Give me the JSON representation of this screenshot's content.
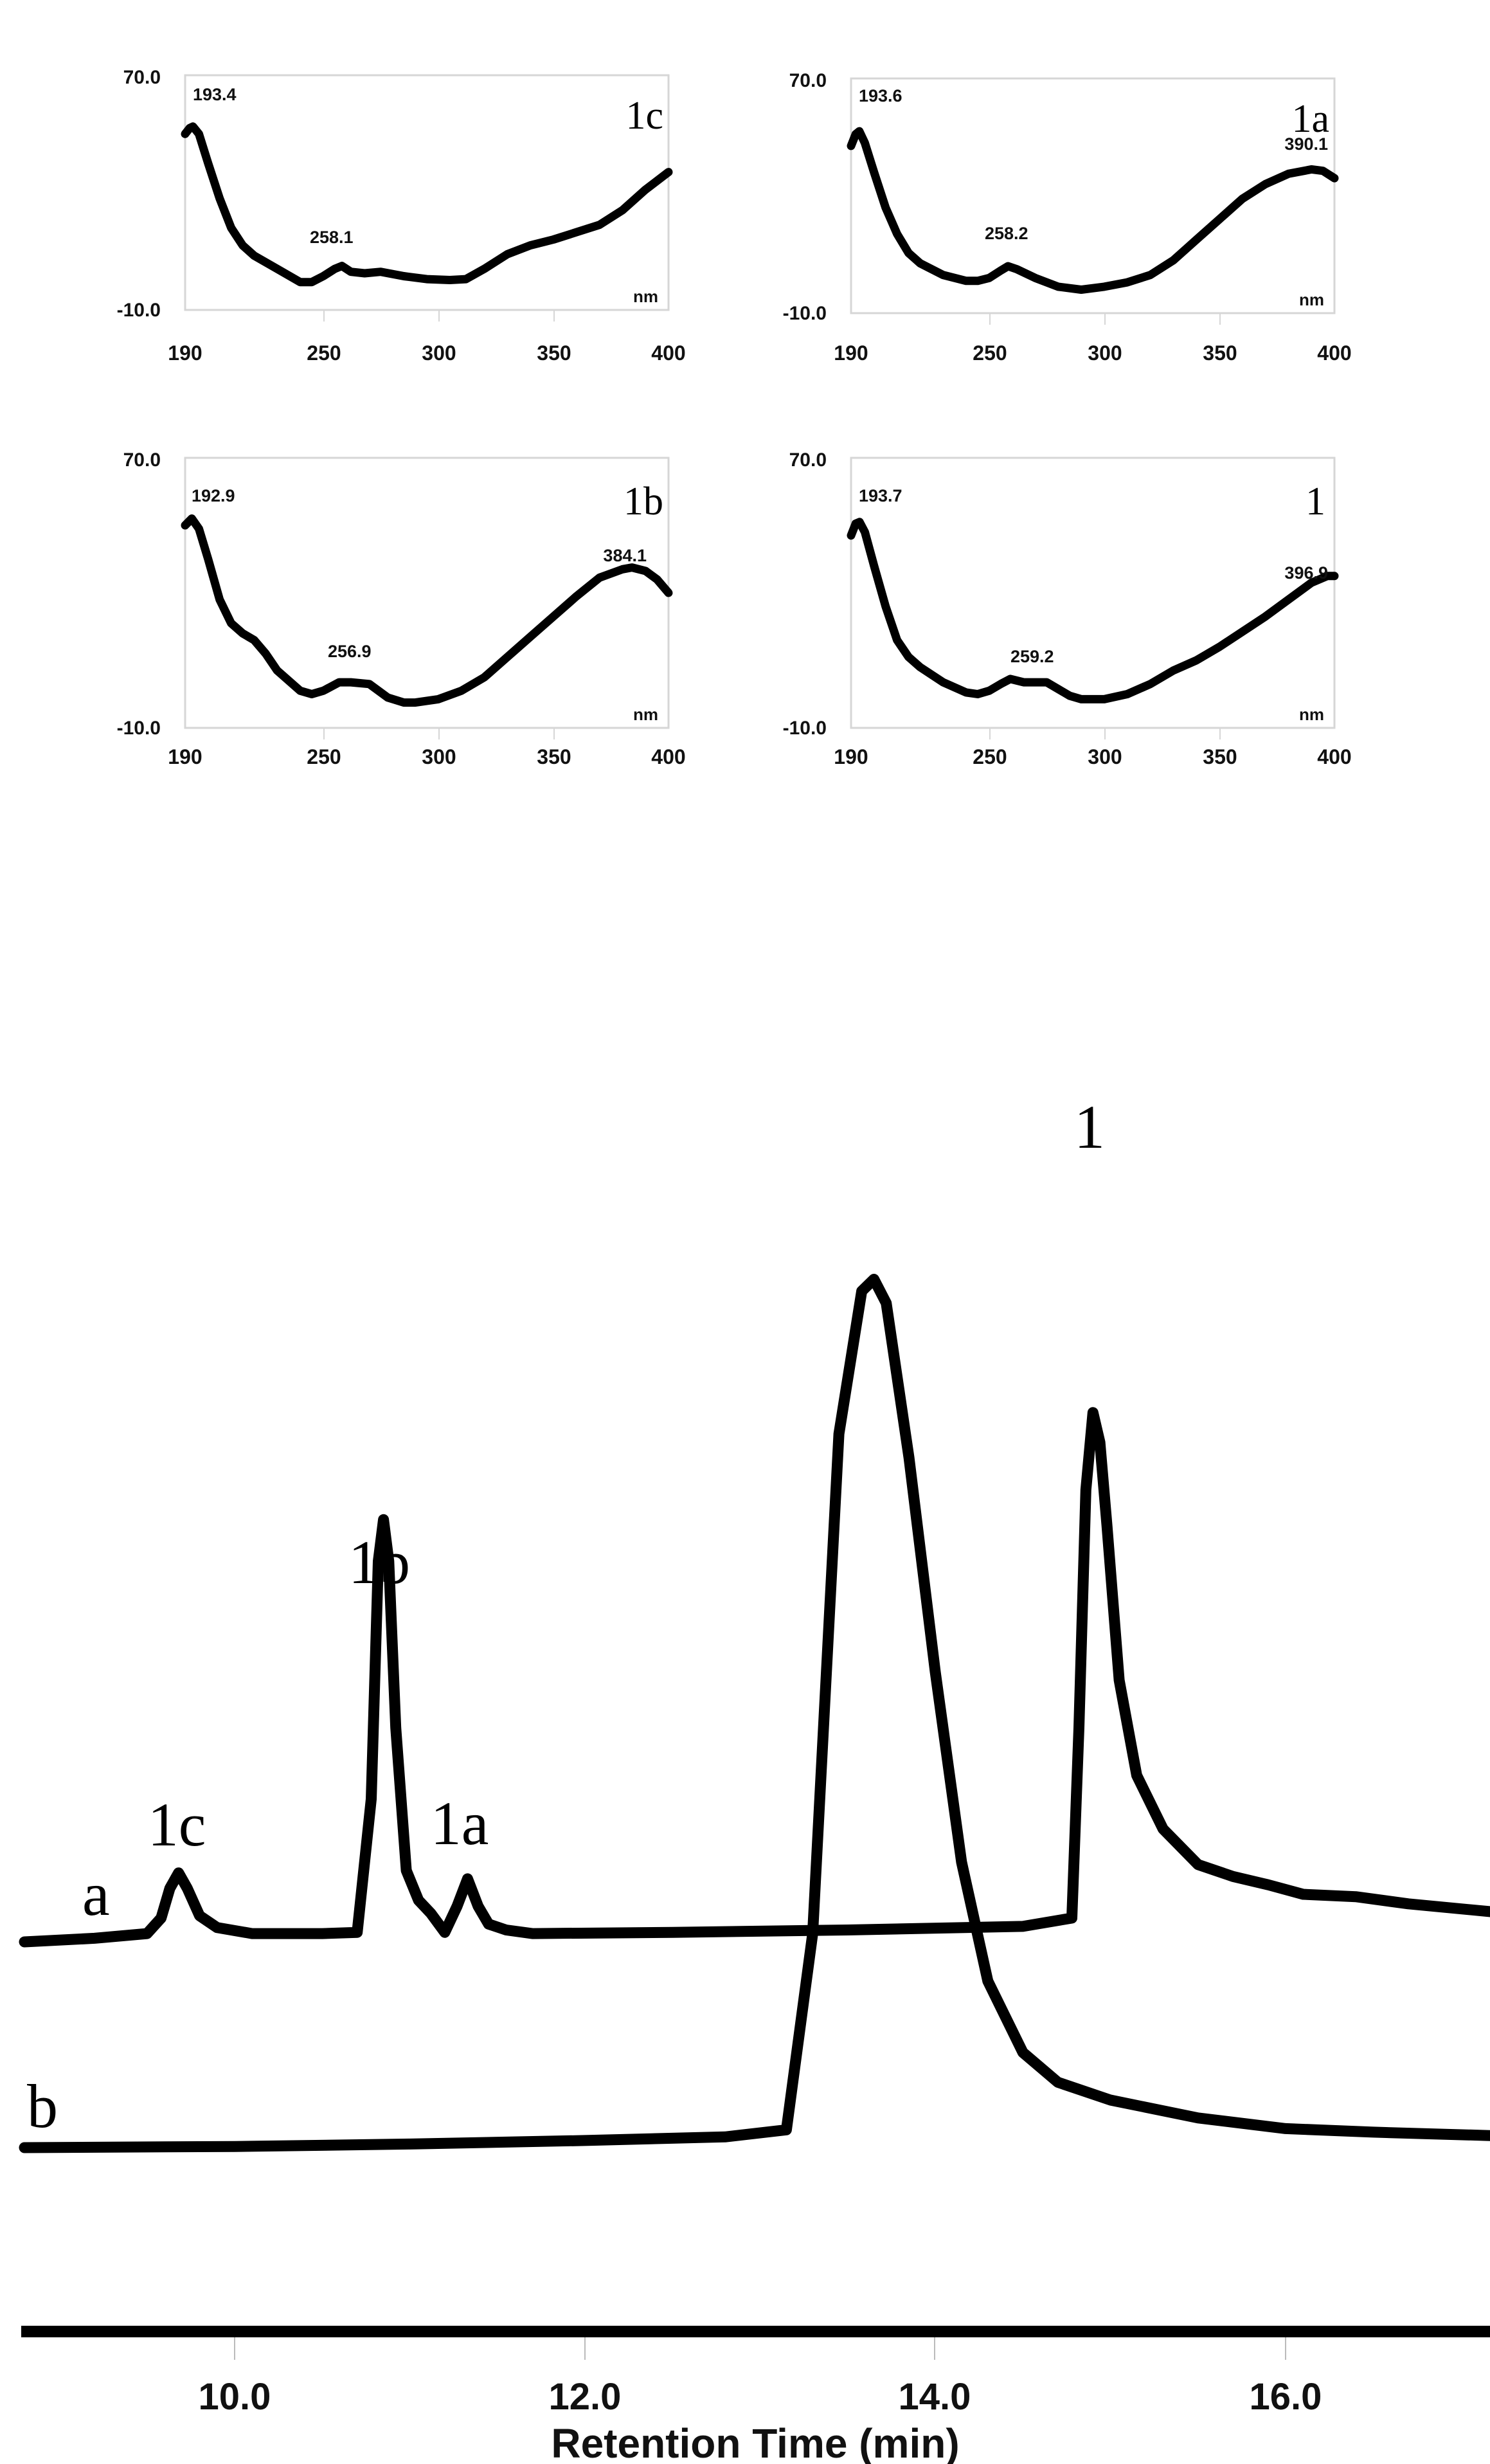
{
  "chart_data": [
    {
      "type": "line",
      "title": "1c",
      "xlabel": "nm",
      "ylabel": "",
      "xlim": [
        190,
        400
      ],
      "ylim": [
        -10.0,
        70.0
      ],
      "x_ticks": [
        "190",
        "250",
        "300",
        "350",
        "400"
      ],
      "y_ticks": [
        "70.0",
        "-10.0"
      ],
      "peak_labels": [
        {
          "x": 193.4,
          "label": "193.4"
        },
        {
          "x": 258.1,
          "label": "258.1"
        }
      ],
      "x": [
        190,
        192,
        193.4,
        196,
        200,
        205,
        210,
        215,
        220,
        230,
        240,
        245,
        250,
        255,
        258.1,
        262,
        268,
        275,
        285,
        295,
        305,
        312,
        320,
        330,
        340,
        350,
        360,
        370,
        380,
        390,
        400
      ],
      "y": [
        50,
        52,
        52.5,
        50,
        40,
        28,
        18,
        12,
        8.5,
        4,
        -0.5,
        -0.5,
        1.5,
        4,
        5,
        3,
        2.5,
        3,
        1.5,
        0.5,
        0.2,
        0.5,
        4,
        9,
        12,
        14,
        16.5,
        19,
        24,
        31,
        37
      ]
    },
    {
      "type": "line",
      "title": "1a",
      "xlabel": "nm",
      "ylabel": "",
      "xlim": [
        190,
        400
      ],
      "ylim": [
        -10.0,
        70.0
      ],
      "x_ticks": [
        "190",
        "250",
        "300",
        "350",
        "400"
      ],
      "y_ticks": [
        "70.0",
        "-10.0"
      ],
      "peak_labels": [
        {
          "x": 193.6,
          "label": "193.6"
        },
        {
          "x": 258.2,
          "label": "258.2"
        },
        {
          "x": 390.1,
          "label": "390.1"
        }
      ],
      "x": [
        190,
        192,
        193.6,
        196,
        200,
        205,
        210,
        215,
        220,
        230,
        240,
        245,
        250,
        255,
        258.2,
        262,
        270,
        280,
        290,
        300,
        310,
        320,
        330,
        340,
        350,
        360,
        370,
        380,
        390.1,
        395,
        400
      ],
      "y": [
        47,
        51,
        52,
        48,
        38,
        26,
        17,
        10.5,
        7,
        3,
        1,
        1,
        2,
        4.5,
        6,
        5,
        2,
        -1,
        -2,
        -1,
        0.5,
        3,
        8,
        15,
        22,
        29,
        34,
        37.5,
        39,
        38.5,
        36
      ]
    },
    {
      "type": "line",
      "title": "1b",
      "xlabel": "nm",
      "ylabel": "",
      "xlim": [
        190,
        400
      ],
      "ylim": [
        -10.0,
        70.0
      ],
      "x_ticks": [
        "190",
        "250",
        "300",
        "350",
        "400"
      ],
      "y_ticks": [
        "70.0",
        "-10.0"
      ],
      "peak_labels": [
        {
          "x": 192.9,
          "label": "192.9"
        },
        {
          "x": 256.9,
          "label": "256.9"
        },
        {
          "x": 384.1,
          "label": "384.1"
        }
      ],
      "x": [
        190,
        192.9,
        196,
        200,
        205,
        210,
        215,
        220,
        225,
        230,
        240,
        245,
        250,
        256.9,
        262,
        270,
        278,
        285,
        290,
        300,
        310,
        320,
        330,
        340,
        350,
        360,
        370,
        380,
        384.1,
        390,
        395,
        400
      ],
      "y": [
        50,
        52,
        49,
        40,
        28,
        21,
        18,
        16,
        12,
        7,
        1,
        0,
        1,
        3.5,
        3.5,
        3,
        -1,
        -2.5,
        -2.5,
        -1.5,
        1,
        5,
        11,
        17,
        23,
        29,
        34.5,
        37,
        37.5,
        36.5,
        34,
        30
      ]
    },
    {
      "type": "line",
      "title": "1",
      "xlabel": "nm",
      "ylabel": "",
      "xlim": [
        190,
        400
      ],
      "ylim": [
        -10.0,
        70.0
      ],
      "x_ticks": [
        "190",
        "250",
        "300",
        "350",
        "400"
      ],
      "y_ticks": [
        "70.0",
        "-10.0"
      ],
      "peak_labels": [
        {
          "x": 193.7,
          "label": "193.7"
        },
        {
          "x": 259.2,
          "label": "259.2"
        },
        {
          "x": 396.9,
          "label": "396.9"
        }
      ],
      "x": [
        190,
        192,
        193.7,
        196,
        200,
        205,
        210,
        215,
        220,
        230,
        240,
        245,
        250,
        255,
        259.2,
        265,
        270,
        275,
        280,
        285,
        290,
        295,
        300,
        310,
        320,
        330,
        340,
        350,
        360,
        370,
        380,
        390,
        396.9,
        400
      ],
      "y": [
        47,
        50.5,
        51,
        48,
        38,
        26,
        16,
        11,
        8,
        3.5,
        0.5,
        0,
        1,
        3,
        4.5,
        3.5,
        3.5,
        3.5,
        1.5,
        -0.5,
        -1.5,
        -1.5,
        -1.5,
        0,
        3,
        7,
        10,
        14,
        18.5,
        23,
        28,
        33,
        35,
        35
      ]
    },
    {
      "type": "line",
      "title": "",
      "xlabel": "Retention Time (min)",
      "ylabel": "",
      "xlim": [
        8.8,
        17.2
      ],
      "x_ticks": [
        "10.0",
        "12.0",
        "14.0",
        "16.0"
      ],
      "grid": false,
      "annotations": [
        {
          "label": "1c",
          "x": 9.68
        },
        {
          "label": "1b",
          "x": 10.85
        },
        {
          "label": "1a",
          "x": 11.33
        },
        {
          "label": "1",
          "x": 14.9
        }
      ],
      "series": [
        {
          "name": "a",
          "x": [
            8.8,
            9.2,
            9.5,
            9.58,
            9.63,
            9.68,
            9.73,
            9.8,
            9.9,
            10.1,
            10.5,
            10.7,
            10.78,
            10.82,
            10.85,
            10.88,
            10.92,
            10.98,
            11.05,
            11.12,
            11.2,
            11.27,
            11.33,
            11.39,
            11.45,
            11.55,
            11.7,
            12.5,
            13.5,
            14.5,
            14.78,
            14.82,
            14.86,
            14.9,
            14.94,
            14.98,
            15.05,
            15.15,
            15.3,
            15.5,
            15.7,
            15.9,
            16.1,
            16.4,
            16.7,
            17.2
          ],
          "y": [
            0,
            0.3,
            0.7,
            2,
            4.5,
            5.8,
            4.5,
            2.2,
            1.2,
            0.7,
            0.7,
            0.8,
            12,
            32,
            35.5,
            32,
            18,
            6,
            3.5,
            2.4,
            0.8,
            3,
            5.3,
            3,
            1.5,
            1,
            0.7,
            0.8,
            1,
            1.3,
            2,
            18,
            38,
            44.5,
            42,
            35,
            22,
            14,
            9.5,
            6.5,
            5.5,
            4.8,
            4,
            3.8,
            3.2,
            2.5
          ]
        },
        {
          "name": "b",
          "x": [
            8.8,
            10,
            11,
            12,
            12.8,
            13.15,
            13.3,
            13.45,
            13.58,
            13.65,
            13.72,
            13.85,
            14,
            14.15,
            14.3,
            14.5,
            14.7,
            15,
            15.5,
            16,
            16.5,
            17.2
          ],
          "y": [
            0,
            0.1,
            0.3,
            0.6,
            0.9,
            1.5,
            18,
            60,
            72,
            73,
            71,
            58,
            40,
            24,
            14,
            8,
            5.5,
            4,
            2.5,
            1.6,
            1.3,
            1.0
          ]
        }
      ]
    }
  ],
  "panels": {
    "p1c": {
      "label": "1c",
      "ymax": "70.0",
      "ymin": "-10.0",
      "unit": "nm",
      "peaks": [
        "193.4",
        "258.1"
      ],
      "xt": [
        "190",
        "250",
        "300",
        "350",
        "400"
      ]
    },
    "p1a": {
      "label": "1a",
      "ymax": "70.0",
      "ymin": "-10.0",
      "unit": "nm",
      "peaks": [
        "193.6",
        "258.2",
        "390.1"
      ],
      "xt": [
        "190",
        "250",
        "300",
        "350",
        "400"
      ]
    },
    "p1b": {
      "label": "1b",
      "ymax": "70.0",
      "ymin": "-10.0",
      "unit": "nm",
      "peaks": [
        "192.9",
        "256.9",
        "384.1"
      ],
      "xt": [
        "190",
        "250",
        "300",
        "350",
        "400"
      ]
    },
    "p1": {
      "label": "1",
      "ymax": "70.0",
      "ymin": "-10.0",
      "unit": "nm",
      "peaks": [
        "193.7",
        "259.2",
        "396.9"
      ],
      "xt": [
        "190",
        "250",
        "300",
        "350",
        "400"
      ]
    }
  },
  "chromatogram": {
    "trace_labels": {
      "a": "a",
      "b": "b"
    },
    "peak_labels": {
      "p1c": "1c",
      "p1b": "1b",
      "p1a": "1a",
      "p1": "1"
    },
    "x_ticks": [
      "10.0",
      "12.0",
      "14.0",
      "16.0"
    ],
    "x_title": "Retention Time (min)"
  },
  "colors": {
    "line": "#000000",
    "frame": "#d6d6d6",
    "text": "#111111"
  }
}
